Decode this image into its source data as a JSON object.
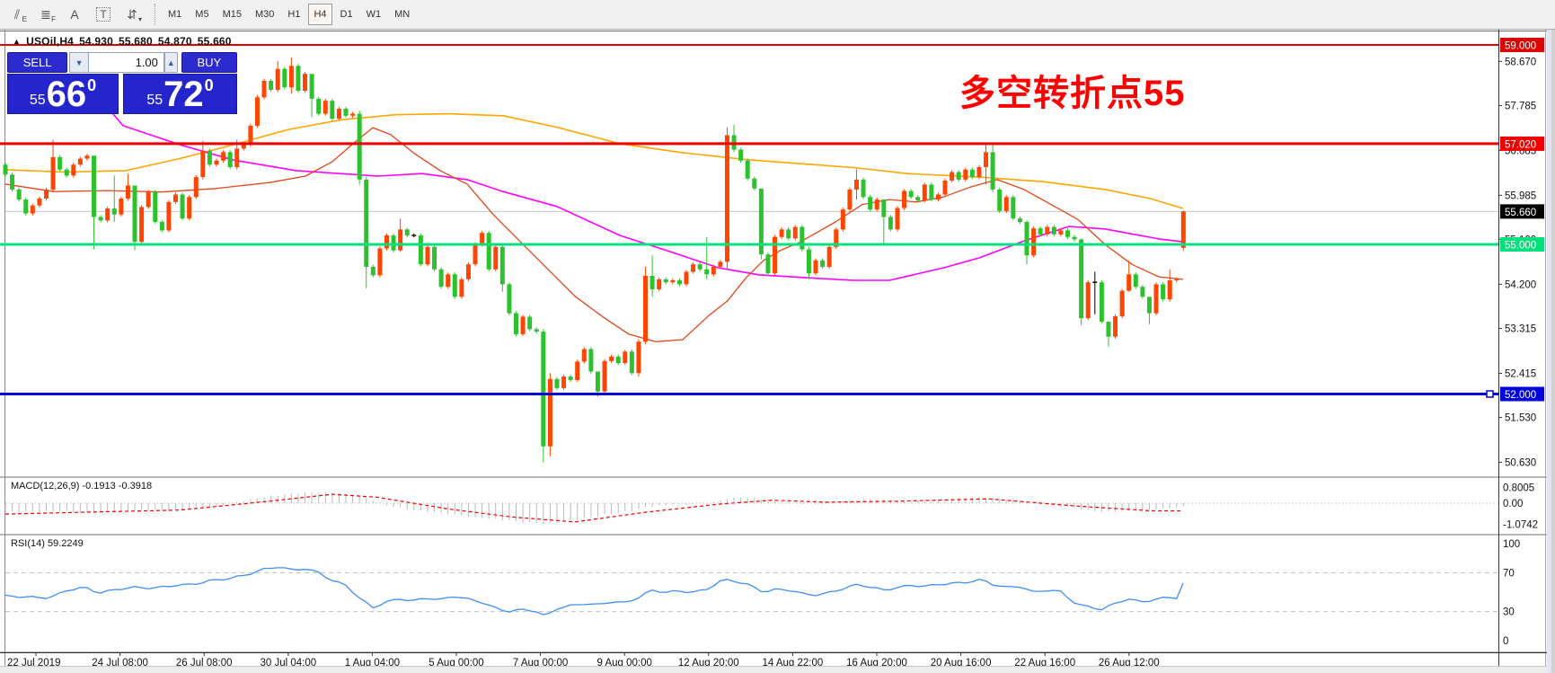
{
  "toolbar": {
    "icons": [
      {
        "name": "equidistant-channel-icon",
        "glyph": "⫽",
        "sub": "E"
      },
      {
        "name": "fibonacci-icon",
        "glyph": "≣",
        "sub": "F"
      },
      {
        "name": "text-icon",
        "glyph": "A",
        "sub": ""
      },
      {
        "name": "text-label-icon",
        "glyph": "T",
        "sub": ""
      },
      {
        "name": "arrange-arrows-icon",
        "glyph": "⇵",
        "sub": "▾"
      }
    ],
    "timeframes": [
      "M1",
      "M5",
      "M15",
      "M30",
      "H1",
      "H4",
      "D1",
      "W1",
      "MN"
    ],
    "active_timeframe": "H4"
  },
  "chart": {
    "title_marker": "▲",
    "symbol_title": "USOil,H4",
    "ohlc": {
      "open": "54.930",
      "high": "55.680",
      "low": "54.870",
      "close": "55.660"
    },
    "one_click": {
      "sell_label": "SELL",
      "buy_label": "BUY",
      "volume": "1.00",
      "stepper_down": "▼",
      "stepper_up": "▲",
      "sell_price": {
        "small": "55",
        "big": "66",
        "sup": "0"
      },
      "buy_price": {
        "small": "55",
        "big": "72",
        "sup": "0"
      }
    },
    "annotation": {
      "text": "多空转折点55",
      "color": "#ff0000"
    },
    "indicators": {
      "macd_label": "MACD(12,26,9) -0.1913 -0.3918",
      "rsi_label": "RSI(14) 59.2249"
    },
    "hlines": [
      {
        "price": 59.0,
        "label": "59.000",
        "color": "#dd0000",
        "width": 2
      },
      {
        "price": 57.02,
        "label": "57.020",
        "color": "#ee0000",
        "width": 3
      },
      {
        "price": 55.0,
        "label": "55.000",
        "color": "#00e07d",
        "width": 3
      },
      {
        "price": 52.0,
        "label": "52.000",
        "color": "#0000dd",
        "width": 3,
        "handle": true
      }
    ],
    "current_price": {
      "price": 55.66,
      "label": "55.660",
      "line_color": "#c4c4c4",
      "badge_color": "#000000"
    },
    "price_ticks": [
      {
        "p": 58.67,
        "t": "58.670"
      },
      {
        "p": 57.785,
        "t": "57.785"
      },
      {
        "p": 56.885,
        "t": "56.885"
      },
      {
        "p": 55.985,
        "t": "55.985"
      },
      {
        "p": 55.1,
        "t": "55.100"
      },
      {
        "p": 54.2,
        "t": "54.200"
      },
      {
        "p": 53.315,
        "t": "53.315"
      },
      {
        "p": 52.415,
        "t": "52.415"
      },
      {
        "p": 51.53,
        "t": "51.530"
      },
      {
        "p": 50.63,
        "t": "50.630"
      }
    ],
    "macd_ticks": [
      {
        "v": 0.8005,
        "t": "0.8005"
      },
      {
        "v": 0.0,
        "t": "0.00"
      },
      {
        "v": -1.0742,
        "t": "-1.0742"
      }
    ],
    "rsi_ticks": [
      {
        "v": 100,
        "t": "100"
      },
      {
        "v": 70,
        "t": "70"
      },
      {
        "v": 30,
        "t": "30"
      },
      {
        "v": 0,
        "t": "0"
      }
    ]
  },
  "chart_data": {
    "type": "candlestick",
    "symbol": "USOil",
    "period": "H4",
    "colors": {
      "up": "#ff4500",
      "down": "#2dc22d",
      "doji": "#000000",
      "ma_slow": "#ffa500",
      "ma_med": "#ff00ff",
      "ma_fast": "#e0471a",
      "macd_bar": "#b9b9b9",
      "macd_signal": "#ee0000",
      "rsi": "#3e8ef7"
    },
    "ylim": [
      50.3,
      59.2
    ],
    "first_open": 56.6,
    "last_open": 54.93,
    "closes": [
      56.4,
      56.1,
      55.9,
      55.62,
      55.78,
      55.92,
      56.1,
      56.75,
      56.5,
      56.38,
      56.6,
      56.72,
      56.78,
      55.55,
      55.48,
      55.72,
      55.6,
      55.92,
      56.18,
      55.05,
      55.75,
      56.05,
      55.45,
      55.28,
      55.85,
      56.0,
      55.52,
      55.95,
      56.35,
      56.88,
      56.6,
      56.68,
      56.85,
      56.55,
      56.92,
      57.0,
      57.38,
      57.95,
      58.28,
      58.1,
      58.52,
      58.15,
      58.58,
      58.08,
      58.42,
      57.92,
      57.62,
      57.88,
      57.52,
      57.72,
      57.58,
      57.62,
      56.3,
      54.55,
      54.38,
      54.92,
      55.18,
      54.88,
      55.3,
      55.18,
      55.18,
      54.6,
      54.95,
      54.5,
      54.15,
      54.4,
      53.95,
      54.3,
      54.6,
      55.0,
      55.23,
      54.5,
      54.95,
      54.2,
      53.62,
      53.2,
      53.55,
      53.3,
      53.25,
      50.95,
      52.3,
      52.12,
      52.35,
      52.28,
      52.65,
      52.9,
      52.45,
      52.05,
      52.66,
      52.75,
      52.62,
      52.85,
      52.42,
      53.05,
      54.37,
      54.1,
      54.3,
      54.24,
      54.28,
      54.2,
      54.45,
      54.6,
      54.5,
      54.4,
      54.55,
      54.65,
      57.19,
      56.9,
      56.68,
      56.32,
      56.12,
      54.8,
      54.42,
      55.15,
      55.3,
      55.12,
      55.35,
      54.9,
      54.42,
      54.68,
      54.55,
      54.95,
      55.3,
      55.7,
      56.1,
      56.3,
      55.95,
      55.7,
      55.9,
      55.55,
      55.3,
      55.73,
      56.07,
      55.95,
      55.88,
      56.2,
      55.9,
      56.0,
      56.28,
      56.45,
      56.3,
      56.5,
      56.35,
      56.55,
      56.85,
      56.1,
      55.67,
      55.95,
      55.52,
      55.45,
      54.78,
      55.32,
      55.2,
      55.35,
      55.2,
      55.28,
      55.15,
      55.1,
      53.52,
      54.24,
      54.24,
      53.45,
      53.15,
      53.56,
      54.07,
      54.4,
      54.15,
      53.95,
      53.62,
      54.2,
      53.9,
      54.28,
      54.3,
      55.66
    ],
    "wicks": {
      "7": [
        57.1,
        56.05
      ],
      "13": [
        55.65,
        54.9
      ],
      "16": [
        56.38,
        55.45
      ],
      "18": [
        56.42,
        55.88
      ],
      "19": [
        55.8,
        54.88
      ],
      "29": [
        57.08,
        56.3
      ],
      "34": [
        57.1,
        56.5
      ],
      "40": [
        58.68,
        58.05
      ],
      "42": [
        58.75,
        58.02
      ],
      "45": [
        58.12,
        57.55
      ],
      "52": [
        57.68,
        56.2
      ],
      "53": [
        56.35,
        54.12
      ],
      "58": [
        55.52,
        54.85
      ],
      "73": [
        54.98,
        54.05
      ],
      "79": [
        53.3,
        50.63
      ],
      "80": [
        52.42,
        50.75
      ],
      "87": [
        52.1,
        51.95
      ],
      "93": [
        53.1,
        52.35
      ],
      "94": [
        54.55,
        53.0
      ],
      "95": [
        54.78,
        53.95
      ],
      "103": [
        55.15,
        54.3
      ],
      "106": [
        57.35,
        54.5
      ],
      "107": [
        57.4,
        56.85
      ],
      "111": [
        55.42,
        54.7
      ],
      "118": [
        54.95,
        54.3
      ],
      "125": [
        56.5,
        55.9
      ],
      "129": [
        55.9,
        55.0
      ],
      "144": [
        57.02,
        56.2
      ],
      "145": [
        57.03,
        56.05
      ],
      "150": [
        55.48,
        54.6
      ],
      "158": [
        55.12,
        53.38
      ],
      "160": [
        54.45,
        53.6
      ],
      "162": [
        53.4,
        52.95
      ],
      "165": [
        54.67,
        54.05
      ],
      "168": [
        53.9,
        53.4
      ],
      "171": [
        54.5,
        53.85
      ],
      "173": [
        55.68,
        54.87
      ]
    },
    "dojis": [
      60,
      160
    ],
    "ma_slow_points": [
      [
        5,
        56.5
      ],
      [
        70,
        56.45
      ],
      [
        140,
        56.48
      ],
      [
        200,
        56.72
      ],
      [
        260,
        57.0
      ],
      [
        320,
        57.3
      ],
      [
        380,
        57.5
      ],
      [
        440,
        57.6
      ],
      [
        500,
        57.62
      ],
      [
        560,
        57.58
      ],
      [
        620,
        57.35
      ],
      [
        690,
        57.02
      ],
      [
        760,
        56.84
      ],
      [
        830,
        56.7
      ],
      [
        890,
        56.62
      ],
      [
        950,
        56.54
      ],
      [
        1010,
        56.42
      ],
      [
        1090,
        56.35
      ],
      [
        1160,
        56.26
      ],
      [
        1230,
        56.1
      ],
      [
        1280,
        55.92
      ],
      [
        1317,
        55.72
      ]
    ],
    "ma_med_points": [
      [
        110,
        57.95
      ],
      [
        137,
        57.38
      ],
      [
        200,
        57.0
      ],
      [
        260,
        56.69
      ],
      [
        330,
        56.48
      ],
      [
        420,
        56.37
      ],
      [
        470,
        56.42
      ],
      [
        520,
        56.3
      ],
      [
        560,
        56.06
      ],
      [
        620,
        55.76
      ],
      [
        690,
        55.18
      ],
      [
        740,
        54.89
      ],
      [
        800,
        54.53
      ],
      [
        845,
        54.39
      ],
      [
        900,
        54.33
      ],
      [
        950,
        54.28
      ],
      [
        990,
        54.28
      ],
      [
        1050,
        54.53
      ],
      [
        1090,
        54.73
      ],
      [
        1140,
        55.07
      ],
      [
        1190,
        55.36
      ],
      [
        1230,
        55.31
      ],
      [
        1290,
        55.11
      ],
      [
        1317,
        55.05
      ]
    ],
    "ma_fast_points": [
      [
        5,
        56.21
      ],
      [
        60,
        56.06
      ],
      [
        120,
        56.08
      ],
      [
        180,
        56.05
      ],
      [
        240,
        56.12
      ],
      [
        300,
        56.24
      ],
      [
        340,
        56.37
      ],
      [
        370,
        56.66
      ],
      [
        395,
        57.05
      ],
      [
        415,
        57.34
      ],
      [
        435,
        57.2
      ],
      [
        460,
        56.84
      ],
      [
        490,
        56.48
      ],
      [
        520,
        56.21
      ],
      [
        550,
        55.58
      ],
      [
        580,
        55.04
      ],
      [
        610,
        54.5
      ],
      [
        640,
        53.96
      ],
      [
        670,
        53.56
      ],
      [
        700,
        53.2
      ],
      [
        730,
        53.05
      ],
      [
        760,
        53.09
      ],
      [
        790,
        53.59
      ],
      [
        810,
        53.87
      ],
      [
        830,
        54.32
      ],
      [
        850,
        54.68
      ],
      [
        870,
        54.89
      ],
      [
        890,
        55.04
      ],
      [
        930,
        55.45
      ],
      [
        960,
        55.8
      ],
      [
        990,
        55.9
      ],
      [
        1020,
        55.85
      ],
      [
        1050,
        55.95
      ],
      [
        1080,
        56.15
      ],
      [
        1110,
        56.3
      ],
      [
        1140,
        56.1
      ],
      [
        1170,
        55.8
      ],
      [
        1200,
        55.5
      ],
      [
        1230,
        55.0
      ],
      [
        1260,
        54.6
      ],
      [
        1290,
        54.35
      ],
      [
        1317,
        54.3
      ]
    ],
    "macd_points": [
      [
        6,
        -0.45
      ],
      [
        60,
        -0.4
      ],
      [
        110,
        -0.5
      ],
      [
        160,
        -0.35
      ],
      [
        210,
        -0.3
      ],
      [
        240,
        -0.15
      ],
      [
        270,
        0.1
      ],
      [
        300,
        0.35
      ],
      [
        330,
        0.5
      ],
      [
        360,
        0.55
      ],
      [
        390,
        0.45
      ],
      [
        410,
        0.2
      ],
      [
        430,
        -0.1
      ],
      [
        460,
        -0.35
      ],
      [
        490,
        -0.5
      ],
      [
        520,
        -0.65
      ],
      [
        550,
        -0.8
      ],
      [
        580,
        -0.95
      ],
      [
        610,
        -1.05
      ],
      [
        640,
        -0.85
      ],
      [
        670,
        -0.6
      ],
      [
        700,
        -0.4
      ],
      [
        720,
        -0.2
      ],
      [
        740,
        -0.1
      ],
      [
        760,
        -0.05
      ],
      [
        790,
        0.0
      ],
      [
        810,
        0.25
      ],
      [
        830,
        0.3
      ],
      [
        850,
        0.2
      ],
      [
        870,
        0.1
      ],
      [
        890,
        0.0
      ],
      [
        910,
        -0.05
      ],
      [
        930,
        0.05
      ],
      [
        950,
        0.15
      ],
      [
        970,
        0.2
      ],
      [
        990,
        0.15
      ],
      [
        1010,
        0.1
      ],
      [
        1030,
        0.15
      ],
      [
        1050,
        0.2
      ],
      [
        1070,
        0.25
      ],
      [
        1090,
        0.3
      ],
      [
        1110,
        0.25
      ],
      [
        1130,
        0.15
      ],
      [
        1150,
        0.0
      ],
      [
        1170,
        -0.1
      ],
      [
        1190,
        -0.2
      ],
      [
        1210,
        -0.35
      ],
      [
        1230,
        -0.45
      ],
      [
        1250,
        -0.4
      ],
      [
        1270,
        -0.35
      ],
      [
        1290,
        -0.3
      ],
      [
        1317,
        -0.19
      ]
    ],
    "macd_signal_points": [
      [
        6,
        -0.55
      ],
      [
        100,
        -0.45
      ],
      [
        200,
        -0.35
      ],
      [
        300,
        0.1
      ],
      [
        370,
        0.45
      ],
      [
        420,
        0.3
      ],
      [
        500,
        -0.3
      ],
      [
        570,
        -0.7
      ],
      [
        640,
        -0.95
      ],
      [
        720,
        -0.45
      ],
      [
        800,
        -0.05
      ],
      [
        860,
        0.15
      ],
      [
        920,
        0.05
      ],
      [
        1000,
        0.1
      ],
      [
        1100,
        0.22
      ],
      [
        1200,
        -0.15
      ],
      [
        1280,
        -0.38
      ],
      [
        1317,
        -0.39
      ]
    ],
    "rsi_points": [
      [
        6,
        46
      ],
      [
        30,
        45
      ],
      [
        55,
        44
      ],
      [
        75,
        52
      ],
      [
        95,
        55
      ],
      [
        110,
        49
      ],
      [
        130,
        53
      ],
      [
        150,
        55
      ],
      [
        170,
        54
      ],
      [
        195,
        57
      ],
      [
        215,
        58
      ],
      [
        235,
        62
      ],
      [
        255,
        64
      ],
      [
        275,
        68
      ],
      [
        295,
        74
      ],
      [
        310,
        76
      ],
      [
        325,
        73
      ],
      [
        340,
        74
      ],
      [
        355,
        70
      ],
      [
        370,
        62
      ],
      [
        385,
        57
      ],
      [
        400,
        44
      ],
      [
        415,
        34
      ],
      [
        430,
        40
      ],
      [
        445,
        43
      ],
      [
        460,
        41
      ],
      [
        475,
        44
      ],
      [
        490,
        42
      ],
      [
        505,
        46
      ],
      [
        520,
        43
      ],
      [
        535,
        40
      ],
      [
        550,
        34
      ],
      [
        565,
        30
      ],
      [
        580,
        32
      ],
      [
        595,
        31
      ],
      [
        607,
        25
      ],
      [
        620,
        33
      ],
      [
        635,
        36
      ],
      [
        650,
        38
      ],
      [
        665,
        37
      ],
      [
        680,
        40
      ],
      [
        695,
        39
      ],
      [
        710,
        44
      ],
      [
        725,
        52
      ],
      [
        740,
        50
      ],
      [
        755,
        51
      ],
      [
        770,
        50
      ],
      [
        785,
        52
      ],
      [
        805,
        63
      ],
      [
        820,
        61
      ],
      [
        835,
        57
      ],
      [
        850,
        50
      ],
      [
        865,
        53
      ],
      [
        880,
        52
      ],
      [
        895,
        48
      ],
      [
        910,
        47
      ],
      [
        925,
        50
      ],
      [
        940,
        54
      ],
      [
        955,
        58
      ],
      [
        970,
        55
      ],
      [
        985,
        52
      ],
      [
        1000,
        55
      ],
      [
        1015,
        57
      ],
      [
        1030,
        56
      ],
      [
        1045,
        58
      ],
      [
        1060,
        59
      ],
      [
        1075,
        60
      ],
      [
        1093,
        63
      ],
      [
        1105,
        58
      ],
      [
        1120,
        55
      ],
      [
        1135,
        56
      ],
      [
        1150,
        50
      ],
      [
        1165,
        52
      ],
      [
        1180,
        51
      ],
      [
        1199,
        37
      ],
      [
        1212,
        35
      ],
      [
        1227,
        32
      ],
      [
        1240,
        38
      ],
      [
        1255,
        43
      ],
      [
        1270,
        40
      ],
      [
        1285,
        42
      ],
      [
        1300,
        45
      ],
      [
        1310,
        44
      ],
      [
        1317,
        59.22
      ]
    ],
    "rsi_levels": [
      70,
      30
    ],
    "x_labels": [
      "22 Jul 2019",
      "24 Jul 08:00",
      "26 Jul 08:00",
      "30 Jul 04:00",
      "1 Aug 04:00",
      "5 Aug 00:00",
      "7 Aug 00:00",
      "9 Aug 00:00",
      "12 Aug 20:00",
      "14 Aug 22:00",
      "16 Aug 20:00",
      "20 Aug 16:00",
      "22 Aug 16:00",
      "26 Aug 12:00"
    ]
  }
}
